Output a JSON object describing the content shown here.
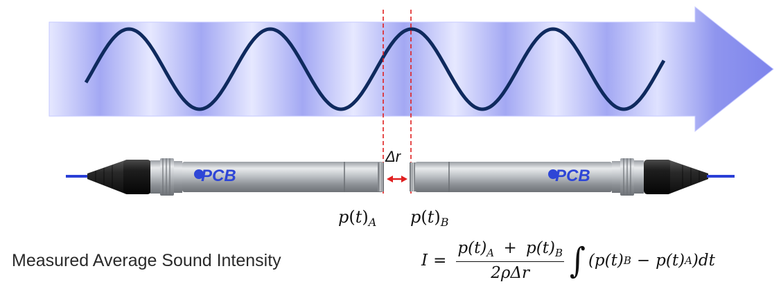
{
  "diagram": {
    "delta_label": "Δr",
    "logo_text": "PCB",
    "pressure_a_label": {
      "p": "p",
      "t": "t",
      "sub": "A"
    },
    "pressure_b_label": {
      "p": "p",
      "t": "t",
      "sub": "B"
    },
    "caption": "Measured Average Sound Intensity",
    "formula": {
      "lhs": "I",
      "equals": "=",
      "numerator_a": "p(t)",
      "numerator_a_sub": "A",
      "plus": "+",
      "numerator_b": "p(t)",
      "numerator_b_sub": "B",
      "denominator": "2ρΔr",
      "integral": "∫",
      "integrand_open": "(p(t)",
      "integrand_b_sub": "B",
      "minus": "−",
      "integrand_a": "p(t)",
      "integrand_a_sub": "A",
      "integrand_close": ")dt"
    }
  },
  "colors": {
    "wave": "#0f2a5e",
    "arrow_light": "#d9dcff",
    "arrow_dark": "#8a8ff0",
    "dashed_line": "#e02020",
    "gap_arrow": "#e02020",
    "cable": "#2a3fd6",
    "logo": "#2e46d6",
    "probe_body": "#b4b8bd"
  },
  "icons": [
    "microphone-probe-a",
    "microphone-probe-b",
    "double-arrow-icon"
  ]
}
